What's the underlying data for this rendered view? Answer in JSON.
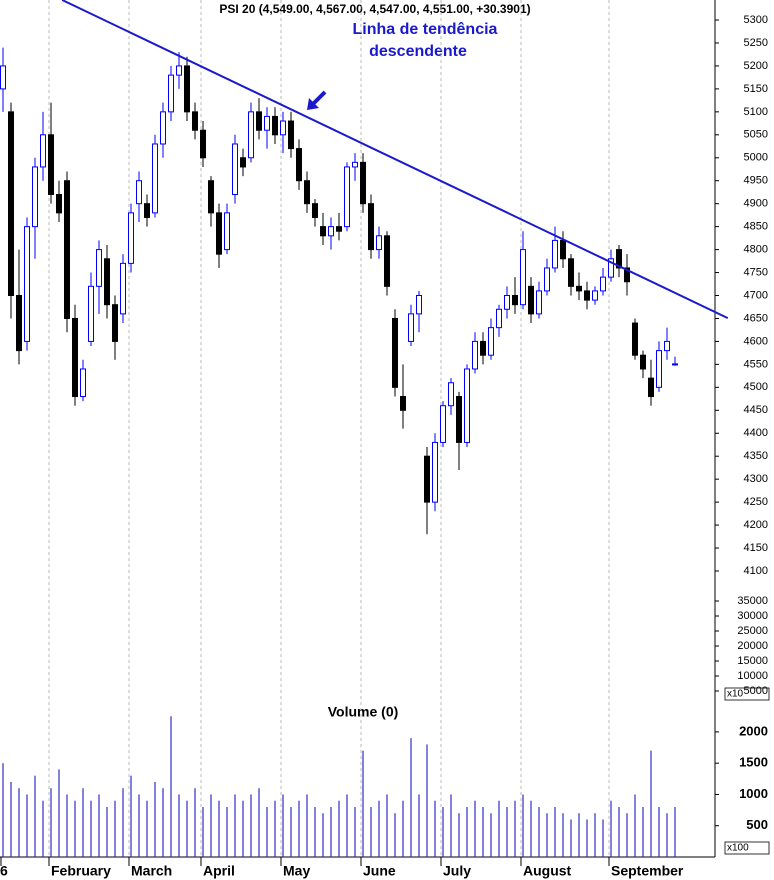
{
  "chart_data": {
    "type": "candlestick",
    "title": "PSI 20 (4,549.00, 4,567.00, 4,547.00, 4,551.00, +30.3901)",
    "annotation": [
      "Linha de tendência",
      "descendente"
    ],
    "volume_title": "Volume (0)",
    "categories": [
      "6",
      null,
      null,
      null,
      null,
      null,
      "February",
      null,
      null,
      null,
      null,
      null,
      null,
      null,
      null,
      null,
      "March",
      null,
      null,
      null,
      null,
      null,
      null,
      null,
      null,
      "April",
      null,
      null,
      null,
      null,
      null,
      null,
      null,
      null,
      null,
      "May",
      null,
      null,
      null,
      null,
      null,
      null,
      null,
      null,
      null,
      "June",
      null,
      null,
      null,
      null,
      null,
      null,
      null,
      null,
      null,
      "July",
      null,
      null,
      null,
      null,
      null,
      null,
      null,
      null,
      null,
      "August",
      null,
      null,
      null,
      null,
      null,
      null,
      null,
      null,
      null,
      null,
      "September",
      null,
      null,
      null,
      null,
      null,
      null,
      null,
      null
    ],
    "open": [
      5150,
      5100,
      4700,
      4600,
      4850,
      4980,
      5050,
      4920,
      4950,
      4650,
      4480,
      4600,
      4720,
      4780,
      4680,
      4660,
      4770,
      4900,
      4900,
      4880,
      5030,
      5100,
      5180,
      5200,
      5100,
      5060,
      4950,
      4880,
      4800,
      4920,
      5000,
      5000,
      5100,
      5060,
      5090,
      5050,
      5080,
      5020,
      4950,
      4900,
      4850,
      4830,
      4850,
      4850,
      4980,
      4990,
      4900,
      4800,
      4830,
      4650,
      4480,
      4600,
      4660,
      4350,
      4250,
      4380,
      4460,
      4480,
      4380,
      4540,
      4600,
      4570,
      4630,
      4670,
      4700,
      4680,
      4720,
      4660,
      4710,
      4760,
      4820,
      4780,
      4720,
      4710,
      4690,
      4710,
      4740,
      4800,
      4760,
      4640,
      4570,
      4520,
      4500,
      4580,
      4549
    ],
    "high": [
      5240,
      5120,
      4800,
      4870,
      5000,
      5100,
      5120,
      4950,
      4970,
      4680,
      4560,
      4750,
      4820,
      4810,
      4700,
      4790,
      4900,
      4970,
      4920,
      5050,
      5120,
      5200,
      5230,
      5220,
      5120,
      5080,
      4960,
      4900,
      4900,
      5050,
      5020,
      5120,
      5130,
      5110,
      5110,
      5100,
      5100,
      5040,
      4970,
      4910,
      4880,
      4870,
      4880,
      4990,
      5010,
      5010,
      4920,
      4850,
      4840,
      4670,
      4550,
      4680,
      4710,
      4370,
      4400,
      4470,
      4520,
      4490,
      4550,
      4620,
      4620,
      4650,
      4680,
      4720,
      4740,
      4840,
      4740,
      4730,
      4780,
      4850,
      4840,
      4790,
      4750,
      4730,
      4720,
      4760,
      4800,
      4810,
      4790,
      4650,
      4580,
      4560,
      4600,
      4630,
      4567
    ],
    "low": [
      5100,
      4650,
      4550,
      4580,
      4780,
      4950,
      4900,
      4860,
      4620,
      4460,
      4470,
      4590,
      4660,
      4650,
      4560,
      4640,
      4750,
      4860,
      4850,
      4870,
      5000,
      5080,
      5150,
      5080,
      5040,
      4980,
      4850,
      4760,
      4790,
      4900,
      4960,
      4990,
      5040,
      5020,
      5030,
      5010,
      5000,
      4930,
      4880,
      4850,
      4810,
      4800,
      4820,
      4840,
      4950,
      4880,
      4780,
      4780,
      4700,
      4480,
      4410,
      4590,
      4620,
      4180,
      4230,
      4370,
      4440,
      4320,
      4370,
      4530,
      4550,
      4560,
      4610,
      4650,
      4660,
      4670,
      4640,
      4650,
      4700,
      4750,
      4760,
      4700,
      4690,
      4670,
      4680,
      4700,
      4730,
      4740,
      4700,
      4560,
      4520,
      4460,
      4490,
      4560,
      4547
    ],
    "close": [
      5200,
      4700,
      4580,
      4850,
      4980,
      5050,
      4920,
      4880,
      4650,
      4480,
      4540,
      4720,
      4800,
      4680,
      4600,
      4770,
      4880,
      4950,
      4870,
      5030,
      5100,
      5180,
      5200,
      5100,
      5060,
      5000,
      4880,
      4790,
      4880,
      5030,
      4980,
      5100,
      5060,
      5090,
      5050,
      5080,
      5020,
      4950,
      4900,
      4870,
      4830,
      4850,
      4840,
      4980,
      4990,
      4900,
      4800,
      4830,
      4720,
      4500,
      4450,
      4660,
      4700,
      4250,
      4380,
      4460,
      4510,
      4380,
      4540,
      4600,
      4570,
      4630,
      4670,
      4700,
      4680,
      4800,
      4660,
      4710,
      4760,
      4820,
      4780,
      4720,
      4710,
      4690,
      4710,
      4740,
      4780,
      4760,
      4730,
      4570,
      4540,
      4480,
      4580,
      4600,
      4551
    ],
    "volume": [
      1500,
      1200,
      1100,
      1000,
      1300,
      900,
      1100,
      1400,
      1000,
      900,
      1100,
      900,
      1000,
      800,
      900,
      1100,
      1300,
      1000,
      900,
      1200,
      1100,
      2250,
      1000,
      900,
      1100,
      800,
      1000,
      900,
      800,
      1000,
      900,
      1000,
      1100,
      800,
      900,
      1000,
      800,
      900,
      1000,
      800,
      700,
      800,
      900,
      1000,
      800,
      1700,
      800,
      900,
      1000,
      700,
      900,
      1900,
      1000,
      1800,
      900,
      800,
      1000,
      700,
      800,
      900,
      800,
      700,
      900,
      800,
      900,
      1000,
      900,
      800,
      700,
      800,
      700,
      600,
      700,
      600,
      700,
      600,
      900,
      800,
      700,
      1000,
      800,
      1700,
      800,
      700,
      800
    ],
    "up_color": "#0000ff",
    "down_color": "#000000",
    "volume_color": "#3030c8",
    "trendline": {
      "x": [
        7.4,
        90.6
      ],
      "y": [
        5343.6,
        4650.8
      ],
      "color": "#1a1acc"
    },
    "ylim": [
      4058.6,
      5343.6
    ],
    "yticks": [
      4100,
      4150,
      4200,
      4250,
      4300,
      4350,
      4400,
      4450,
      4500,
      4550,
      4600,
      4650,
      4700,
      4750,
      4800,
      4850,
      4900,
      4950,
      5000,
      5050,
      5100,
      5150,
      5200,
      5250,
      5300
    ],
    "y3lim": [
      0,
      38667
    ],
    "y3ticks": [
      5000,
      10000,
      15000,
      20000,
      25000,
      30000,
      35000
    ],
    "y3_unit": "x10",
    "y2lim": [
      0,
      2510
    ],
    "y2ticks": [
      500,
      1000,
      1500,
      2000
    ],
    "y2_unit": "x100",
    "grid": true
  }
}
